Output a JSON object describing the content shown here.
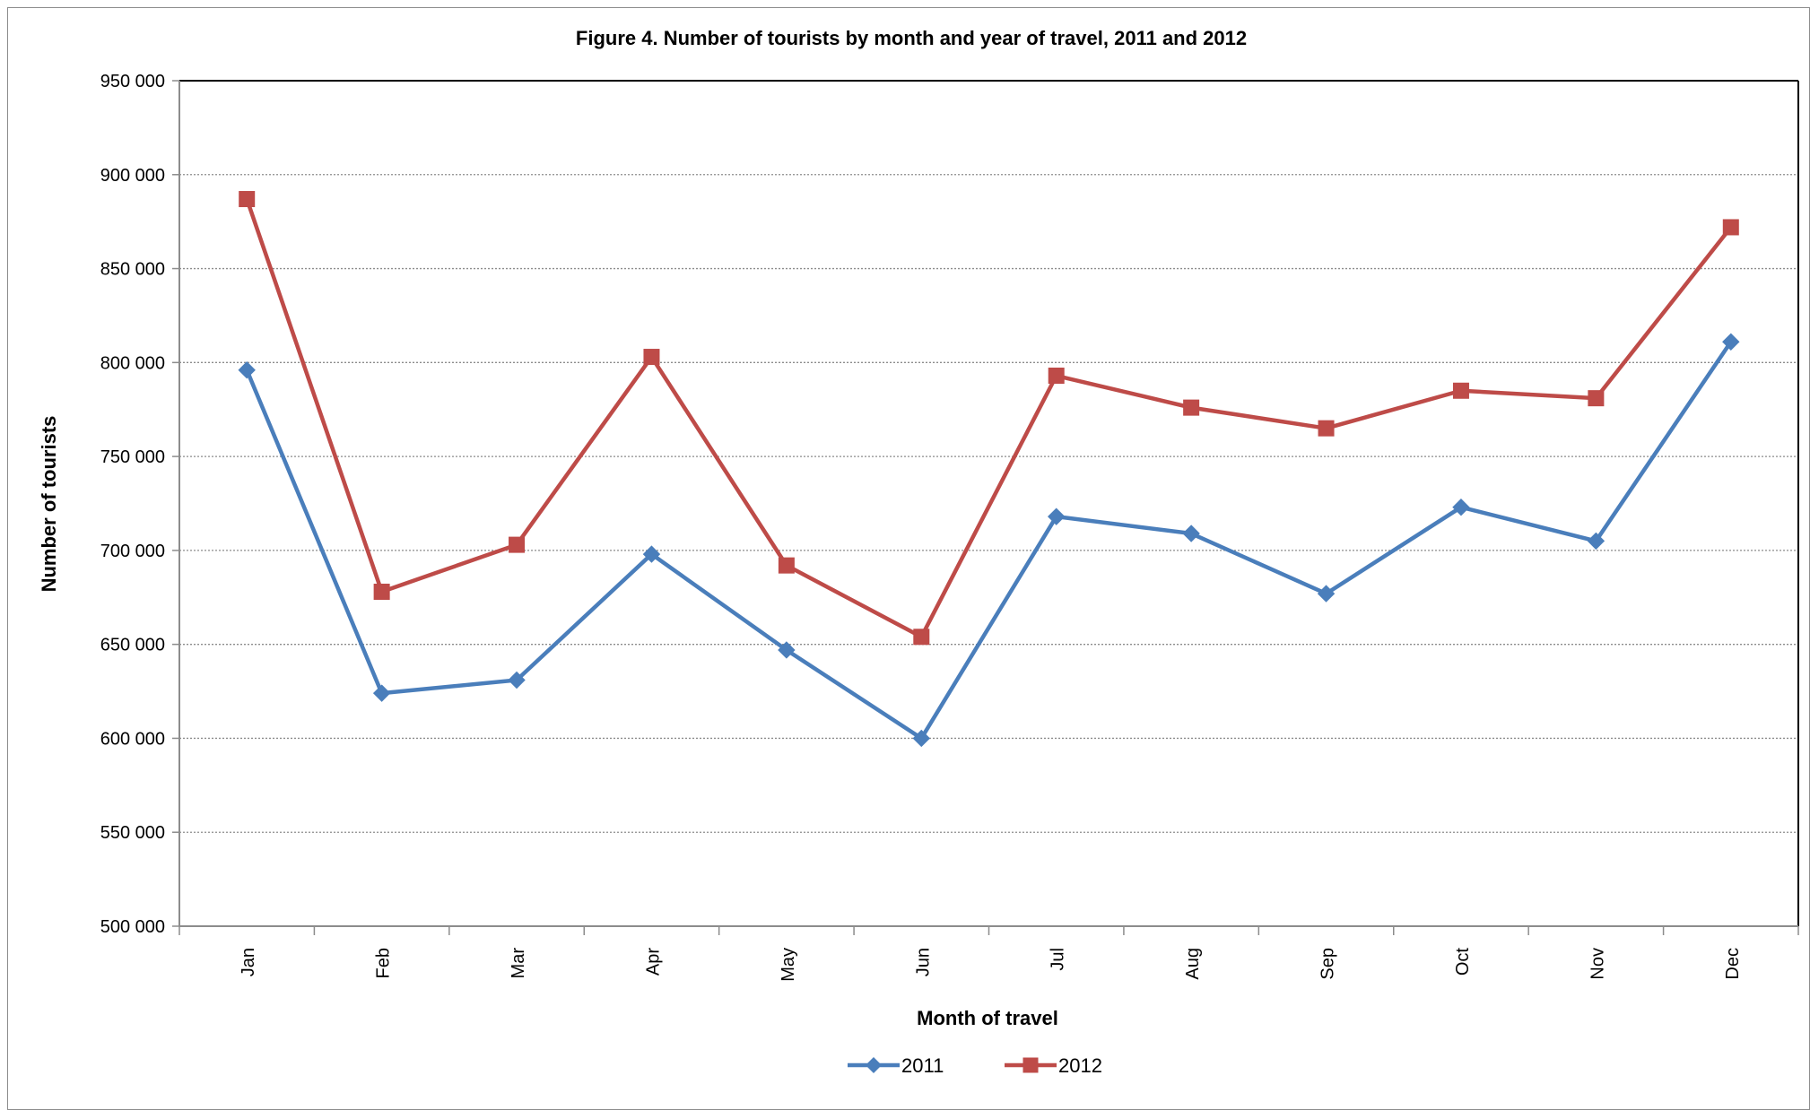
{
  "chart_data": {
    "type": "line",
    "title": "Figure 4. Number of tourists by month and year of travel, 2011 and 2012",
    "xlabel": "Month of travel",
    "ylabel": "Number of tourists",
    "categories": [
      "Jan",
      "Feb",
      "Mar",
      "Apr",
      "May",
      "Jun",
      "Jul",
      "Aug",
      "Sep",
      "Oct",
      "Nov",
      "Dec"
    ],
    "ylim": [
      500000,
      950000
    ],
    "yticks": [
      500000,
      550000,
      600000,
      650000,
      700000,
      750000,
      800000,
      850000,
      900000,
      950000
    ],
    "ytick_labels": [
      "500 000",
      "550 000",
      "600 000",
      "650 000",
      "700 000",
      "750 000",
      "800 000",
      "850 000",
      "900 000",
      "950 000"
    ],
    "grid": "horizontal dotted",
    "legend_position": "bottom",
    "series": [
      {
        "name": "2011",
        "color": "#4a7ebb",
        "marker": "diamond",
        "values": [
          796000,
          624000,
          631000,
          698000,
          647000,
          600000,
          718000,
          709000,
          677000,
          723000,
          705000,
          811000
        ]
      },
      {
        "name": "2012",
        "color": "#be4b48",
        "marker": "square",
        "values": [
          887000,
          678000,
          703000,
          803000,
          692000,
          654000,
          793000,
          776000,
          765000,
          785000,
          781000,
          872000
        ]
      }
    ]
  }
}
